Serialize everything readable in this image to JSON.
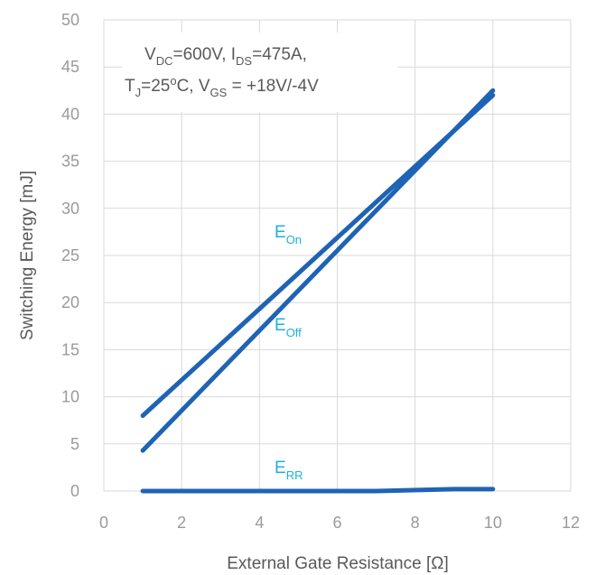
{
  "chart_data": {
    "type": "line",
    "xlabel": "External Gate Resistance [Ω]",
    "ylabel": "Switching Energy [mJ]",
    "xlim": [
      0,
      12
    ],
    "ylim": [
      0,
      50
    ],
    "xticks": [
      0,
      2,
      4,
      6,
      8,
      10,
      12
    ],
    "yticks": [
      0,
      5,
      10,
      15,
      20,
      25,
      30,
      35,
      40,
      45,
      50
    ],
    "grid": true,
    "conditions": {
      "line1": {
        "v": "V",
        "v_sub": "DC",
        "v_val": "=600V, ",
        "i": "I",
        "i_sub": "DS",
        "i_val": "=475A,"
      },
      "line2": {
        "t": "T",
        "t_sub": "J",
        "t_val": "=25",
        "deg": "o",
        "c": "C, ",
        "vg": "V",
        "vg_sub": "GS",
        "vg_val": " = +18V/-4V"
      }
    },
    "series": [
      {
        "name": "E",
        "name_sub": "On",
        "color": "#1f63b5",
        "x": [
          1,
          10
        ],
        "y": [
          8.0,
          42.0
        ]
      },
      {
        "name": "E",
        "name_sub": "Off",
        "color": "#1f63b5",
        "x": [
          1,
          10
        ],
        "y": [
          4.3,
          42.5
        ]
      },
      {
        "name": "E",
        "name_sub": "RR",
        "color": "#1f63b5",
        "x": [
          1,
          7,
          9,
          10
        ],
        "y": [
          0.0,
          0.0,
          0.2,
          0.2
        ]
      }
    ],
    "label_color": "#1cb0e0"
  }
}
